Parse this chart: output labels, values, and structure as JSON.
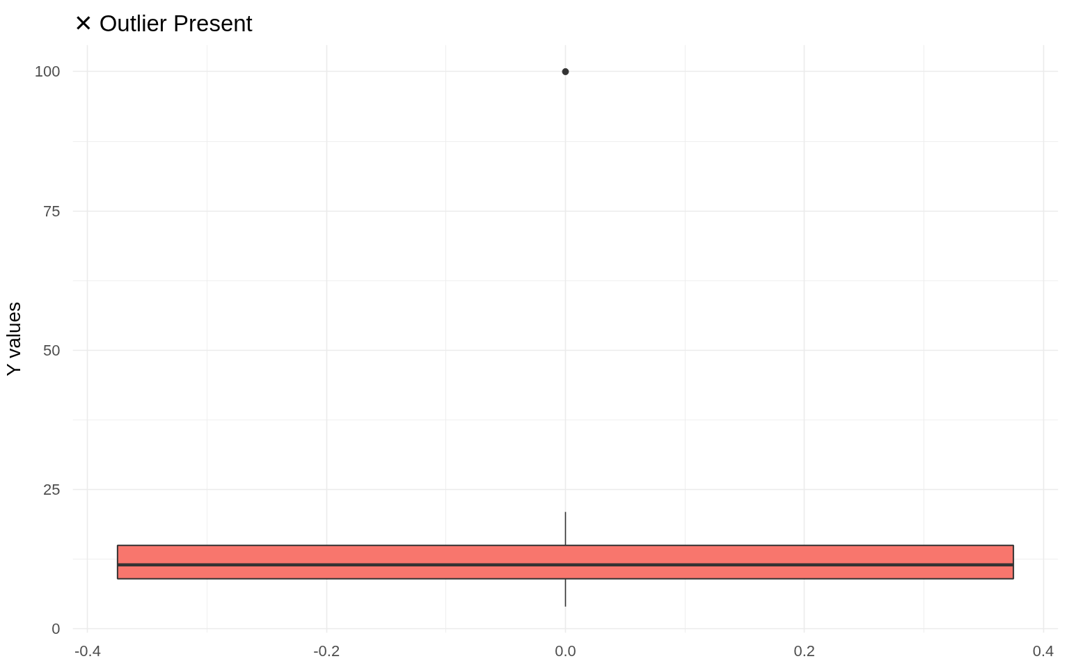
{
  "chart_data": {
    "type": "box",
    "title": "✕ Outlier Present",
    "ylabel": "Y values",
    "categories": [
      null
    ],
    "boxes": [
      {
        "low": 4,
        "q1": 9,
        "median": 11.5,
        "q3": 15,
        "high": 21,
        "outliers": [
          100
        ]
      }
    ],
    "color": "#f8766d",
    "annotations": [
      "-0.4",
      "-0.2",
      "0.0",
      "0.2",
      "0.4"
    ],
    "ylim": [
      -0.7,
      104.8
    ],
    "yticks": [
      0,
      25,
      50,
      75,
      100
    ],
    "grid": true
  }
}
